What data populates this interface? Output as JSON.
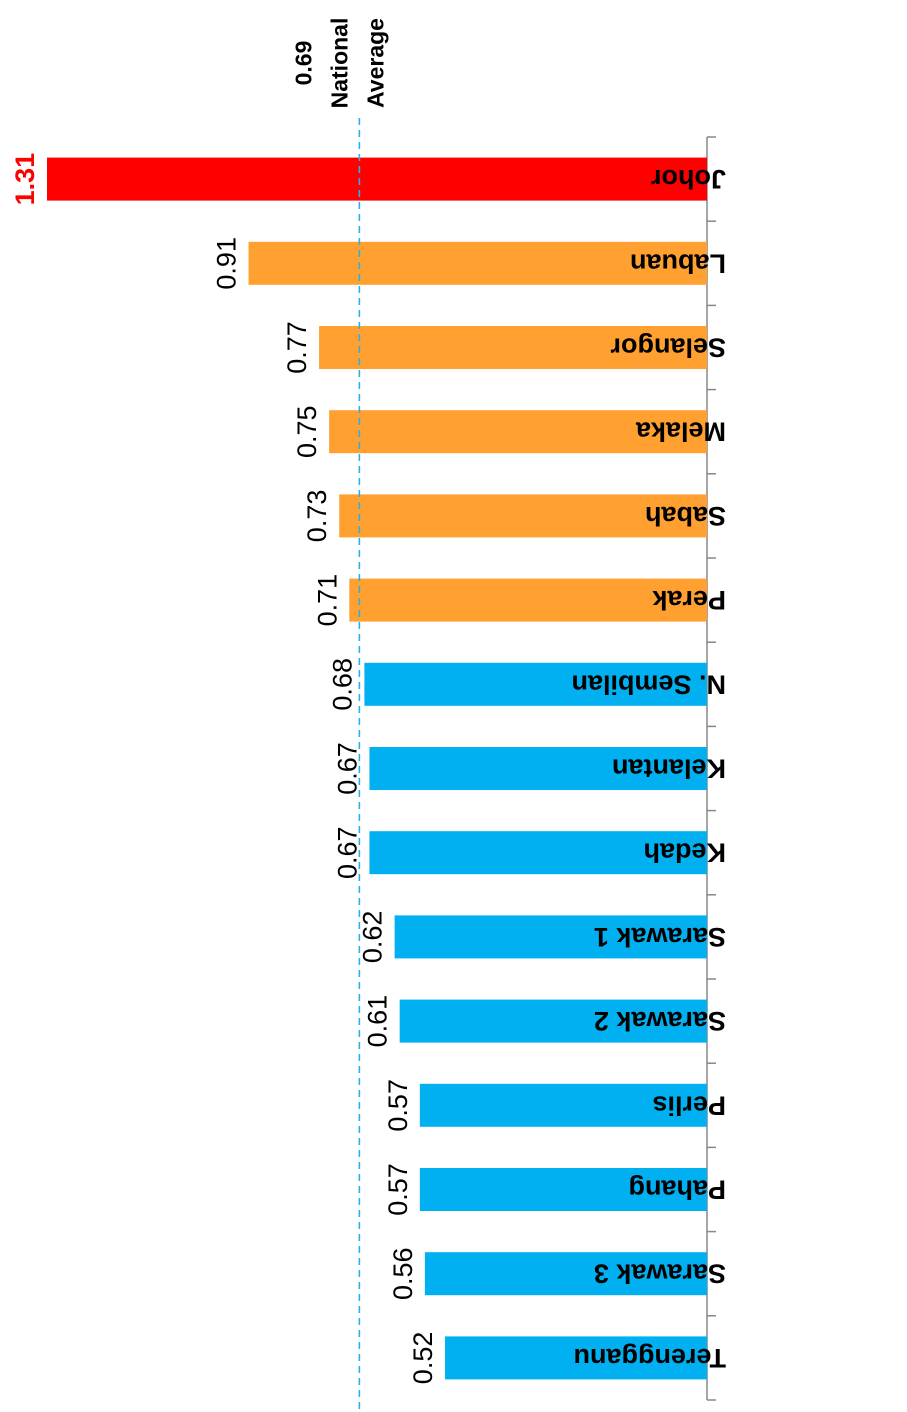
{
  "chart_data": {
    "type": "bar",
    "orientation": "horizontal, rendered rotated 180°",
    "title": "",
    "xlabel": "",
    "ylabel": "",
    "xlim": [
      0,
      1.31
    ],
    "categories": [
      "Johor",
      "Labuan",
      "Selangor",
      "Melaka",
      "Sabah",
      "Perak",
      "N. Sembilan",
      "Kelantan",
      "Kedah",
      "Sarawak 1",
      "Sarawak 2",
      "Perlis",
      "Pahang",
      "Sarawak 3",
      "Terengganu"
    ],
    "values": [
      1.31,
      0.91,
      0.77,
      0.75,
      0.73,
      0.71,
      0.68,
      0.67,
      0.67,
      0.62,
      0.61,
      0.57,
      0.57,
      0.56,
      0.52
    ],
    "value_labels": [
      "1.31",
      "0.91",
      "0.77",
      "0.75",
      "0.73",
      "0.71",
      "0.68",
      "0.67",
      "0.67",
      "0.62",
      "0.61",
      "0.57",
      "0.57",
      "0.56",
      "0.52"
    ],
    "colors": [
      "#ff0000",
      "#ffa030",
      "#ffa030",
      "#ffa030",
      "#ffa030",
      "#ffa030",
      "#00b0f0",
      "#00b0f0",
      "#00b0f0",
      "#00b0f0",
      "#00b0f0",
      "#00b0f0",
      "#00b0f0",
      "#00b0f0",
      "#00b0f0"
    ],
    "highlight_color": "#ff0000",
    "reference_line": {
      "value": 0.69,
      "value_label": "0.69",
      "label_lines": [
        "National",
        "Average"
      ],
      "color": "#2ab0e6",
      "style": "dashed"
    },
    "grid": false,
    "legend": "none"
  }
}
